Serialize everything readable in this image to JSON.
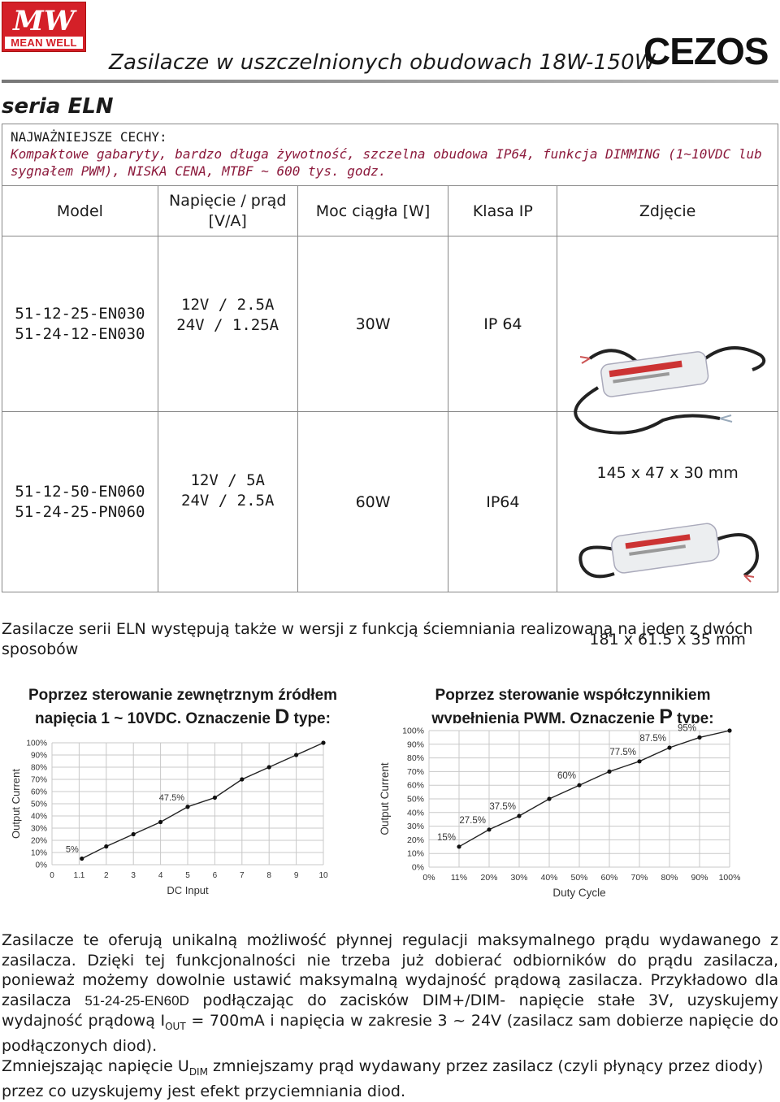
{
  "header": {
    "meanwell_logo_mark": "MW",
    "meanwell_logo_name": "MEAN WELL",
    "title": "Zasilacze w uszczelnionych obudowach 18W-150W",
    "cezos_logo": "CEZOS"
  },
  "series_title": "seria ELN",
  "features": {
    "label": "NAJWAŻNIEJSZE CECHY:",
    "text": "Kompaktowe gabaryty, bardzo długa żywotność, szczelna obudowa IP64, funkcja DIMMING (1~10VDC lub sygnałem PWM), NISKA CENA, MTBF ~ 600 tys. godz."
  },
  "table": {
    "headers": [
      "Model",
      "Napięcie / prąd [V/A]",
      "Moc ciągła [W]",
      "Klasa IP",
      "Zdjęcie"
    ],
    "rows": [
      {
        "model_1": "51-12-25-EN030",
        "model_2": "51-24-12-EN030",
        "vi_1": "12V / 2.5A",
        "vi_2": "24V / 1.25A",
        "power": "30W",
        "ip": "IP 64",
        "dims": "145 x 47 x 30 mm"
      },
      {
        "model_1": "51-12-50-EN060",
        "model_2": "51-24-25-PN060",
        "vi_1": "12V / 5A",
        "vi_2": "24V / 2.5A",
        "power": "60W",
        "ip": "IP64",
        "dims": "181 x 61.5 x 35 mm"
      }
    ]
  },
  "dimming_intro": "Zasilacze serii ELN występują także w wersji z funkcją ściemniania realizowaną na jeden z dwóch sposobów",
  "chart_left_header": {
    "line1": "Poprzez sterowanie zewnętrznym źródłem",
    "line2_pre": "napięcia 1 ~ 10VDC. Oznaczenie ",
    "letter": "D",
    "line2_post": " type:"
  },
  "chart_right_header": {
    "line1": "Poprzez sterowanie współczynnikiem",
    "line2_pre": "wypełnienia PWM. Oznaczenie ",
    "letter": "P",
    "line2_post": " type:"
  },
  "chart_data": [
    {
      "type": "line",
      "xlabel": "DC Input",
      "ylabel": "Output Current",
      "x_ticks": [
        "0",
        "1.1",
        "2",
        "3",
        "4",
        "5",
        "6",
        "7",
        "8",
        "9",
        "10"
      ],
      "y_ticks": [
        "0%",
        "10%",
        "20%",
        "30%",
        "40%",
        "50%",
        "60%",
        "70%",
        "80%",
        "90%",
        "100%"
      ],
      "x": [
        1.1,
        2,
        3,
        4,
        5,
        6,
        7,
        8,
        9,
        10
      ],
      "y": [
        5,
        15,
        25,
        35,
        47.5,
        55,
        70,
        80,
        90,
        100
      ],
      "annotations": [
        {
          "text": "5%",
          "x": 1.1,
          "y": 5
        },
        {
          "text": "47.5%",
          "x": 5,
          "y": 47.5
        }
      ],
      "xlim": [
        0,
        10
      ],
      "ylim": [
        0,
        100
      ],
      "grid": true
    },
    {
      "type": "line",
      "xlabel": "Duty Cycle",
      "ylabel": "Output Current",
      "x_ticks": [
        "0%",
        "11%",
        "20%",
        "30%",
        "40%",
        "50%",
        "60%",
        "70%",
        "80%",
        "90%",
        "100%"
      ],
      "y_ticks": [
        "0%",
        "10%",
        "20%",
        "30%",
        "40%",
        "50%",
        "60%",
        "70%",
        "80%",
        "90%",
        "100%"
      ],
      "x": [
        11,
        20,
        30,
        40,
        50,
        60,
        70,
        80,
        90,
        100
      ],
      "y": [
        15,
        27.5,
        37.5,
        50,
        60,
        70,
        77.5,
        87.5,
        95,
        100
      ],
      "annotations": [
        {
          "text": "15%",
          "x": 11,
          "y": 15
        },
        {
          "text": "27.5%",
          "x": 20,
          "y": 27.5
        },
        {
          "text": "37.5%",
          "x": 30,
          "y": 37.5
        },
        {
          "text": "60%",
          "x": 50,
          "y": 60
        },
        {
          "text": "77.5%",
          "x": 70,
          "y": 77.5
        },
        {
          "text": "87.5%",
          "x": 80,
          "y": 87.5
        },
        {
          "text": "95%",
          "x": 90,
          "y": 95
        }
      ],
      "xlim": [
        0,
        100
      ],
      "ylim": [
        0,
        100
      ],
      "grid": true
    }
  ],
  "bottom": {
    "p1": "Zasilacze te oferują unikalną możliwość płynnej regulacji maksymalnego prądu wydawanego z zasilacza. Dzięki tej funkcjonalności nie trzeba już dobierać odbiorników do prądu zasilacza, ponieważ możemy dowolnie ustawić maksymalną wydajność prądową zasilacza. Przykładowo dla zasilacza ",
    "example_model": "51-24-25-EN60D",
    "p1b": " podłączając do zacisków DIM+/DIM- napięcie stałe 3V, uzyskujemy wydajność prądową I",
    "iout_sub": "OUT",
    "p1c": " = 700mA i napięcia w zakresie 3 ~ 24V (zasilacz sam dobierze napięcie do podłączonych diod).",
    "p2a": "Zmniejszając napięcie U",
    "udim_sub": "DIM",
    "p2b": " zmniejszamy prąd wydawany przez zasilacz (czyli płynący przez diody) przez co uzyskujemy jest efekt przyciemniania diod."
  }
}
